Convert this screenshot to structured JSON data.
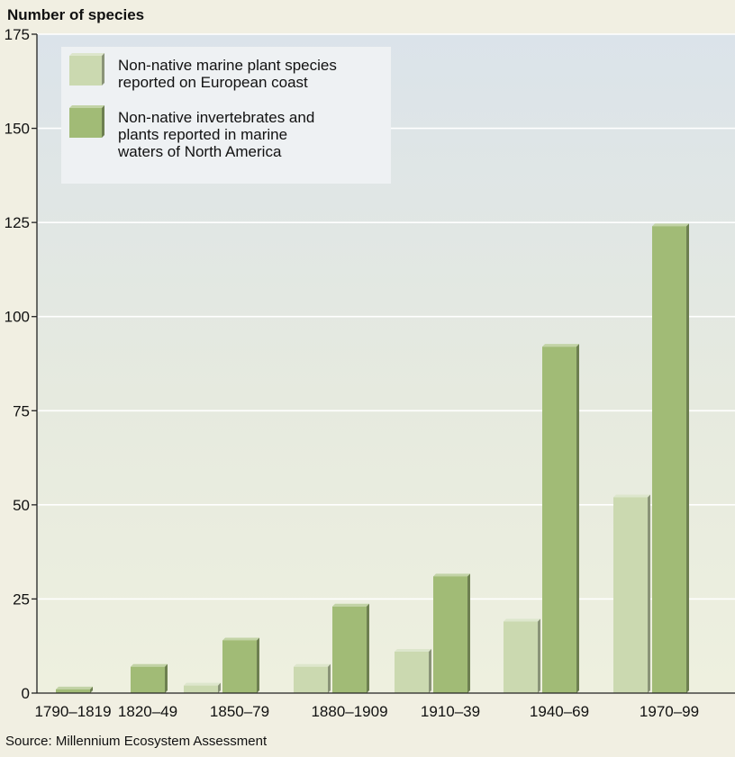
{
  "chart_data": {
    "type": "bar",
    "ylabel": "Number of species",
    "ylim": [
      0,
      175
    ],
    "y_ticks": [
      0,
      25,
      50,
      75,
      100,
      125,
      150,
      175
    ],
    "grid": true,
    "legend_position": "top-left",
    "categories": [
      "1790–1819",
      "1820–49",
      "1850–79",
      "1880–1909",
      "1910–39",
      "1940–69",
      "1970–99"
    ],
    "series": [
      {
        "name": "Non-native marine plant species reported on European coast",
        "legend_lines": [
          "Non-native marine plant species",
          "reported on European coast"
        ],
        "values": [
          0,
          0,
          2,
          7,
          11,
          19,
          52
        ],
        "color": "#cbd9b0"
      },
      {
        "name": "Non-native invertebrates and plants reported in marine waters of North America",
        "legend_lines": [
          "Non-native invertebrates and",
          "plants reported in marine",
          "waters of North America"
        ],
        "values": [
          1,
          7,
          14,
          23,
          31,
          92,
          124
        ],
        "color": "#a1bb76"
      }
    ],
    "source": "Source: Millennium Ecosystem Assessment"
  }
}
